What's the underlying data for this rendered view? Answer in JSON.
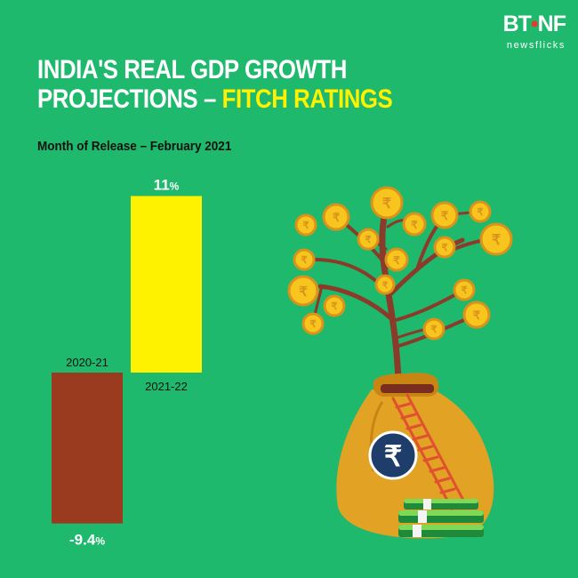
{
  "logo": {
    "brand_left": "BT",
    "brand_mid": "•",
    "brand_right": "NF",
    "tagline": "newsflicks"
  },
  "title": {
    "line1": "INDIA'S REAL GDP GROWTH",
    "line2_white": "PROJECTIONS – ",
    "line2_highlight": "FITCH RATINGS"
  },
  "subtitle": "Month of Release – February 2021",
  "colors": {
    "background": "#1fb96d",
    "positive_bar": "#fff200",
    "negative_bar": "#9a3b1f",
    "highlight": "#fff200"
  },
  "chart_data": {
    "type": "bar",
    "categories": [
      "2020-21",
      "2021-22"
    ],
    "values": [
      -9.4,
      11
    ],
    "value_labels": [
      "-9.4",
      "11"
    ],
    "unit": "%",
    "bar_colors": [
      "#9a3b1f",
      "#fff200"
    ],
    "ylim": [
      -9.4,
      11
    ]
  },
  "illustration": {
    "icon": "money-tree-icon",
    "bag_symbol": "₹"
  }
}
